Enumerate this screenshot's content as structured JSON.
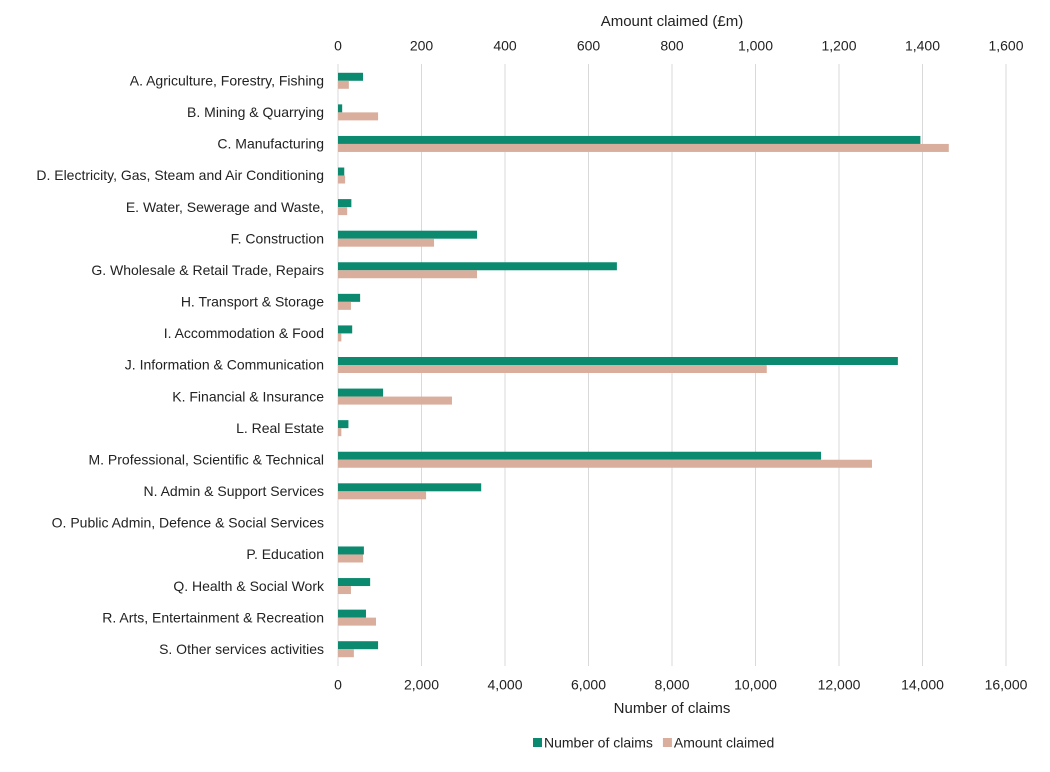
{
  "chart_data": {
    "type": "bar",
    "orientation": "horizontal",
    "x_label": "Number of claims",
    "x2_label": "Amount claimed (£m)",
    "categories": [
      "A. Agriculture, Forestry, Fishing",
      "B. Mining & Quarrying",
      "C. Manufacturing",
      "D. Electricity, Gas, Steam and Air Conditioning",
      "E. Water, Sewerage and Waste,",
      "F. Construction",
      "G. Wholesale & Retail Trade, Repairs",
      "H. Transport & Storage",
      "I. Accommodation & Food",
      "J. Information & Communication",
      "K. Financial & Insurance",
      "L. Real Estate",
      "M. Professional, Scientific & Technical",
      "N. Admin & Support Services",
      "O. Public Admin, Defence & Social Services",
      "P. Education",
      "Q. Health & Social Work",
      "R. Arts, Entertainment & Recreation",
      "S. Other services activities"
    ],
    "series": [
      {
        "name": "Number of claims",
        "color": "#0b8a6f",
        "axis": "x",
        "values": [
          600,
          100,
          13950,
          150,
          320,
          3330,
          6680,
          530,
          340,
          13410,
          1080,
          250,
          11570,
          3430,
          null,
          620,
          770,
          670,
          960
        ]
      },
      {
        "name": "Amount claimed",
        "color": "#d9ae9c",
        "axis": "x2",
        "values": [
          26,
          96,
          1463,
          17,
          22,
          230,
          333,
          31,
          8,
          1027,
          273,
          8,
          1279,
          211,
          null,
          60,
          31,
          91,
          38
        ]
      }
    ],
    "xlim": [
      0,
      16000
    ],
    "xticks": [
      0,
      {
        "value": 2000,
        "label": "2,000"
      },
      {
        "value": 4000,
        "label": "4,000"
      },
      {
        "value": 6000,
        "label": "6,000"
      },
      {
        "value": 8000,
        "label": "8,000"
      },
      {
        "value": 10000,
        "label": "10,000"
      },
      {
        "value": 12000,
        "label": "12,000"
      },
      {
        "value": 14000,
        "label": "14,000"
      },
      {
        "value": 16000,
        "label": "16,000"
      }
    ],
    "x2lim": [
      0,
      1600
    ],
    "x2ticks": [
      0,
      200,
      400,
      600,
      800,
      {
        "value": 1000,
        "label": "1,000"
      },
      {
        "value": 1200,
        "label": "1,200"
      },
      {
        "value": 1400,
        "label": "1,400"
      },
      {
        "value": 1600,
        "label": "1,600"
      }
    ],
    "grid": true,
    "legend": "bottom"
  }
}
